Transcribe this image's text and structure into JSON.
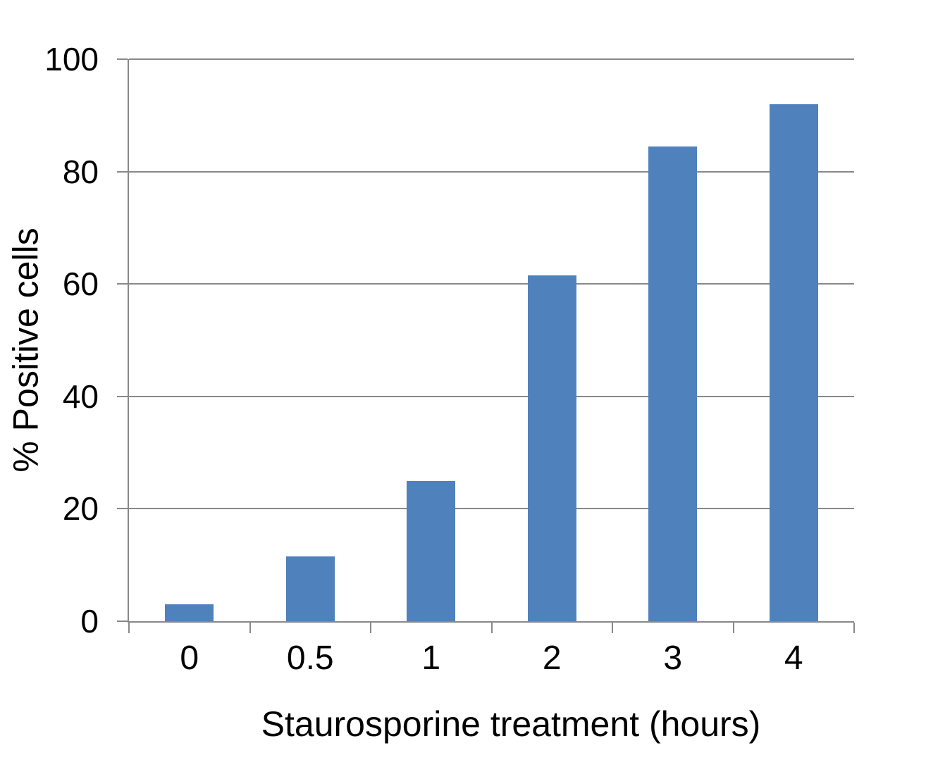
{
  "chart_data": {
    "type": "bar",
    "title": "",
    "categories": [
      "0",
      "0.5",
      "1",
      "2",
      "3",
      "4"
    ],
    "values": [
      3,
      11.5,
      25,
      61.5,
      84.5,
      92
    ],
    "xlabel": "Staurosporine treatment (hours)",
    "ylabel": "% Positive cells",
    "ylim": [
      0,
      100
    ],
    "yticks": [
      0,
      20,
      40,
      60,
      80,
      100
    ],
    "grid": true,
    "legend": false,
    "colors": {
      "bar": "#4F81BD",
      "axis": "#898989",
      "gridline": "#898989",
      "text": "#000000",
      "background": "#FFFFFF"
    }
  }
}
